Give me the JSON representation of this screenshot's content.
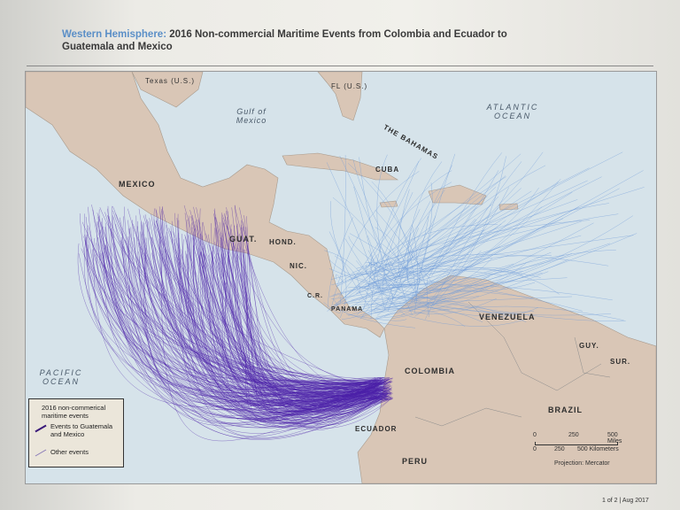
{
  "title": {
    "highlight": "Western Hemisphere:",
    "rest": " 2016 Non-commercial Maritime Events from Colombia and Ecuador to Guatemala and Mexico"
  },
  "labels": {
    "texas": "Texas (U.S.)",
    "fl": "FL (U.S.)",
    "gulf": "Gulf of Mexico",
    "atlantic": "ATLANTIC OCEAN",
    "bahamas": "THE BAHAMAS",
    "cuba": "CUBA",
    "mexico": "MEXICO",
    "guat": "GUAT.",
    "hond": "HOND.",
    "nic": "NIC.",
    "cr": "C.R.",
    "panama": "PANAMA",
    "venezuela": "VENEZUELA",
    "guy": "GUY.",
    "sur": "SUR.",
    "colombia": "COLOMBIA",
    "brazil": "BRAZIL",
    "ecuador": "ECUADOR",
    "peru": "PERU",
    "pacific": "PACIFIC OCEAN"
  },
  "legend": {
    "heading": "2016 non-commerical maritime events",
    "item1": "Events to Guatemala and Mexico",
    "item2": "Other events"
  },
  "scale": {
    "miles": [
      "0",
      "250",
      "500 Miles"
    ],
    "km": [
      "0",
      "250",
      "500 Kilometers"
    ],
    "projection": "Projection: Mercator"
  },
  "footer": "1 of 2  |  Aug 2017",
  "colors": {
    "sea": "#d6e3ea",
    "land": "#d9c6b6",
    "purple_routes": "#4b1fa8",
    "blue_routes": "#6d9ad8"
  }
}
